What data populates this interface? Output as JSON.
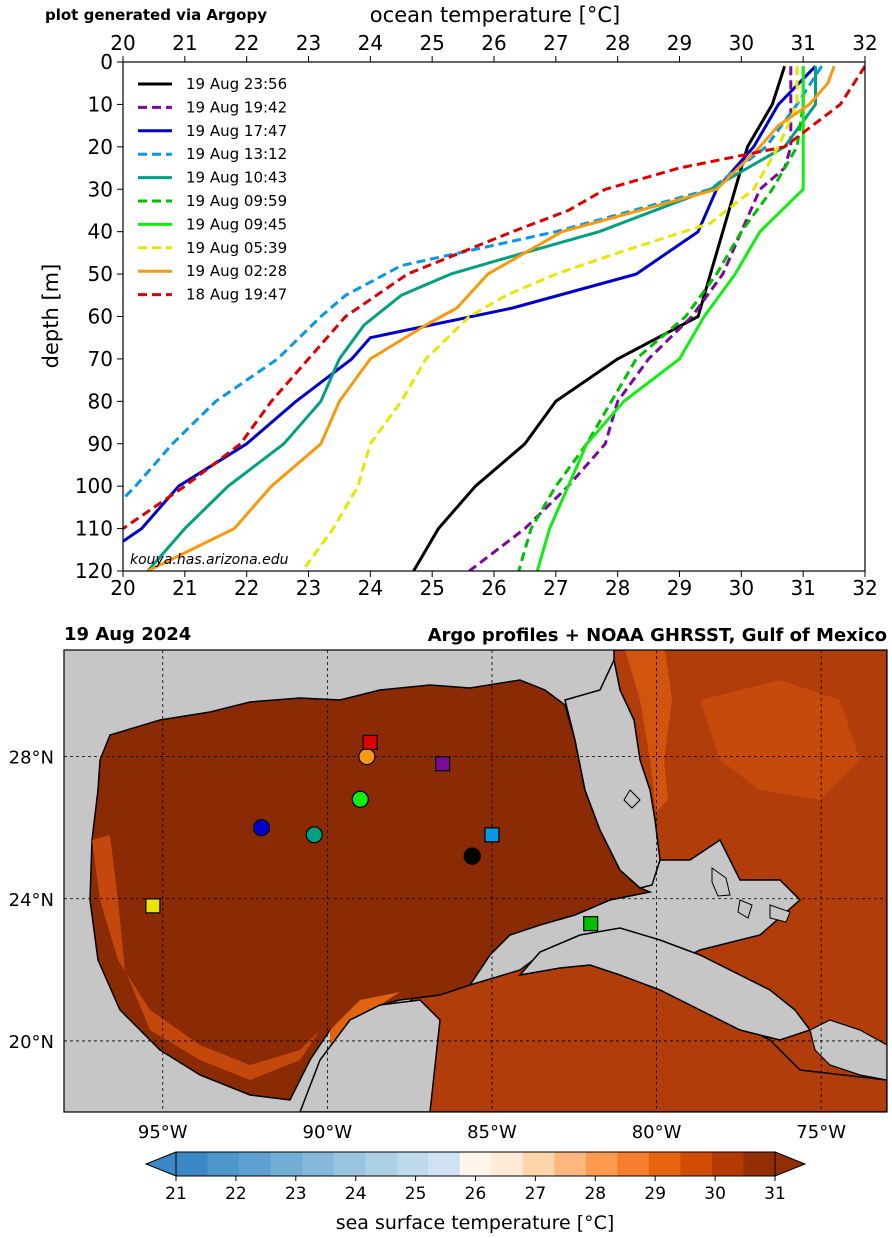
{
  "header": {
    "credit": "plot generated via Argopy",
    "watermark": "kouya.has.arizona.edu"
  },
  "chart_data": [
    {
      "type": "line",
      "title": "ocean temperature [°C]",
      "xlabel": "ocean temperature [°C]",
      "ylabel": "depth [m]",
      "xlim": [
        20,
        32
      ],
      "ylim": [
        120,
        0
      ],
      "x_ticks": [
        "20",
        "21",
        "22",
        "23",
        "24",
        "25",
        "26",
        "27",
        "28",
        "29",
        "30",
        "31",
        "32"
      ],
      "y_ticks": [
        "0",
        "10",
        "20",
        "30",
        "40",
        "50",
        "60",
        "70",
        "80",
        "90",
        "100",
        "110",
        "120"
      ],
      "legend_position": "top-left",
      "series": [
        {
          "name": "19 Aug 23:56",
          "color": "#000000",
          "dashed": false,
          "depth": [
            1,
            10,
            20,
            30,
            40,
            50,
            60,
            70,
            80,
            90,
            100,
            110,
            120
          ],
          "temp": [
            30.7,
            30.5,
            30.1,
            29.9,
            29.7,
            29.5,
            29.3,
            28.0,
            27.0,
            26.5,
            25.7,
            25.1,
            24.7
          ]
        },
        {
          "name": "19 Aug 19:42",
          "color": "#7a0a9c",
          "dashed": true,
          "depth": [
            1,
            10,
            20,
            25,
            30,
            40,
            50,
            60,
            70,
            80,
            90,
            100,
            110,
            120
          ],
          "temp": [
            30.8,
            30.8,
            30.8,
            30.7,
            30.3,
            30.0,
            29.7,
            29.2,
            28.5,
            28.0,
            27.8,
            27.2,
            26.5,
            25.6
          ]
        },
        {
          "name": "19 Aug 17:47",
          "color": "#0000cc",
          "dashed": false,
          "depth": [
            1,
            10,
            20,
            25,
            30,
            40,
            50,
            58,
            65,
            70,
            80,
            90,
            100,
            110,
            113
          ],
          "temp": [
            31.2,
            30.6,
            30.2,
            29.9,
            29.6,
            29.3,
            28.3,
            26.3,
            24.0,
            23.7,
            22.8,
            22.0,
            20.9,
            20.3,
            20.0
          ]
        },
        {
          "name": "19 Aug 13:12",
          "color": "#0a96e6",
          "dashed": true,
          "depth": [
            1,
            10,
            20,
            30,
            40,
            48,
            55,
            60,
            70,
            80,
            90,
            100,
            103
          ],
          "temp": [
            31.3,
            30.9,
            30.4,
            29.5,
            27.0,
            24.5,
            23.6,
            23.2,
            22.5,
            21.5,
            20.8,
            20.2,
            20.0
          ]
        },
        {
          "name": "19 Aug 10:43",
          "color": "#00a080",
          "dashed": false,
          "depth": [
            1,
            10,
            20,
            30,
            40,
            47,
            50,
            55,
            62,
            70,
            80,
            90,
            100,
            110,
            120
          ],
          "temp": [
            31.2,
            31.2,
            30.7,
            29.5,
            27.7,
            26.0,
            25.3,
            24.5,
            23.9,
            23.5,
            23.2,
            22.6,
            21.7,
            21.0,
            20.4
          ]
        },
        {
          "name": "19 Aug 09:59",
          "color": "#00c000",
          "dashed": true,
          "depth": [
            1,
            10,
            20,
            30,
            40,
            50,
            60,
            70,
            80,
            90,
            100,
            110,
            120
          ],
          "temp": [
            31.0,
            31.0,
            30.9,
            30.5,
            30.0,
            29.6,
            29.1,
            28.3,
            27.9,
            27.5,
            27.0,
            26.6,
            26.4
          ]
        },
        {
          "name": "19 Aug 09:45",
          "color": "#11ee11",
          "dashed": false,
          "depth": [
            1,
            10,
            20,
            30,
            40,
            50,
            60,
            70,
            80,
            90,
            100,
            110,
            120
          ],
          "temp": [
            31.0,
            31.0,
            31.0,
            31.0,
            30.3,
            29.9,
            29.4,
            29.0,
            28.1,
            27.5,
            27.2,
            26.9,
            26.7
          ]
        },
        {
          "name": "19 Aug 05:39",
          "color": "#e6e600",
          "dashed": true,
          "depth": [
            1,
            10,
            20,
            30,
            38,
            45,
            50,
            55,
            60,
            70,
            80,
            90,
            100,
            110,
            120
          ],
          "temp": [
            30.9,
            30.9,
            30.6,
            30.2,
            29.5,
            28.0,
            27.0,
            26.2,
            25.6,
            24.9,
            24.5,
            24.0,
            23.8,
            23.4,
            22.9
          ]
        },
        {
          "name": "19 Aug 02:28",
          "color": "#f89a10",
          "dashed": false,
          "depth": [
            1,
            5,
            10,
            15,
            20,
            30,
            40,
            50,
            58,
            62,
            70,
            80,
            90,
            100,
            110,
            120
          ],
          "temp": [
            31.5,
            31.4,
            31.1,
            30.6,
            30.3,
            29.6,
            27.1,
            25.9,
            25.4,
            24.9,
            24.0,
            23.5,
            23.2,
            22.4,
            21.8,
            20.4
          ]
        },
        {
          "name": "18 Aug 19:47",
          "color": "#dd0000",
          "dashed": true,
          "depth": [
            1,
            10,
            20,
            25,
            30,
            35,
            40,
            50,
            60,
            70,
            80,
            90,
            100,
            110
          ],
          "temp": [
            32.0,
            31.6,
            30.7,
            29.0,
            27.8,
            27.2,
            26.3,
            24.6,
            23.6,
            23.0,
            22.4,
            21.9,
            21.0,
            20.0
          ]
        }
      ]
    },
    {
      "type": "heatmap",
      "title": "Argo profiles + NOAA GHRSST, Gulf of Mexico",
      "date": "19 Aug 2024",
      "region": "Gulf of Mexico",
      "lat_labels": [
        "28°N",
        "24°N",
        "20°N"
      ],
      "lat_values": [
        28,
        24,
        20
      ],
      "lon_labels": [
        "95°W",
        "90°W",
        "85°W",
        "80°W",
        "75°W"
      ],
      "lon_values": [
        -95,
        -90,
        -85,
        -80,
        -75
      ],
      "lon_range": [
        -98,
        -73
      ],
      "lat_range": [
        18,
        31
      ],
      "colorbar": {
        "label": "sea surface temperature [°C]",
        "range": [
          21,
          31
        ],
        "ticks": [
          "21",
          "22",
          "23",
          "24",
          "25",
          "26",
          "27",
          "28",
          "29",
          "30",
          "31"
        ],
        "colors": [
          "#3b88c4",
          "#4d96cc",
          "#5fa2d2",
          "#72add6",
          "#85b8da",
          "#99c4de",
          "#acd0e4",
          "#bfdaec",
          "#cfe2f3",
          "#fff5eb",
          "#feead6",
          "#fdd5aa",
          "#fdb77e",
          "#fc9a50",
          "#f47e2e",
          "#e8640e",
          "#d24d04",
          "#b33a02",
          "#922e04"
        ]
      },
      "markers": [
        {
          "name": "19 Aug 23:56",
          "shape": "circle",
          "color": "#000000",
          "lon": -85.6,
          "lat": 25.2
        },
        {
          "name": "19 Aug 19:42",
          "shape": "square",
          "color": "#7a0a9c",
          "lon": -86.5,
          "lat": 27.8
        },
        {
          "name": "19 Aug 17:47",
          "shape": "circle",
          "color": "#0000cc",
          "lon": -92.0,
          "lat": 26.0
        },
        {
          "name": "19 Aug 13:12",
          "shape": "square",
          "color": "#0a96e6",
          "lon": -85.0,
          "lat": 25.8
        },
        {
          "name": "19 Aug 10:43",
          "shape": "circle",
          "color": "#00a080",
          "lon": -90.4,
          "lat": 25.8
        },
        {
          "name": "19 Aug 09:59",
          "shape": "square",
          "color": "#00c000",
          "lon": -82.0,
          "lat": 23.3
        },
        {
          "name": "19 Aug 09:45",
          "shape": "circle",
          "color": "#11ee11",
          "lon": -89.0,
          "lat": 26.8
        },
        {
          "name": "19 Aug 05:39",
          "shape": "square",
          "color": "#e6e600",
          "lon": -95.3,
          "lat": 23.8
        },
        {
          "name": "19 Aug 02:28",
          "shape": "circle",
          "color": "#f89a10",
          "lon": -88.8,
          "lat": 28.0
        },
        {
          "name": "18 Aug 19:47",
          "shape": "square",
          "color": "#dd0000",
          "lon": -88.7,
          "lat": 28.4
        }
      ]
    }
  ]
}
